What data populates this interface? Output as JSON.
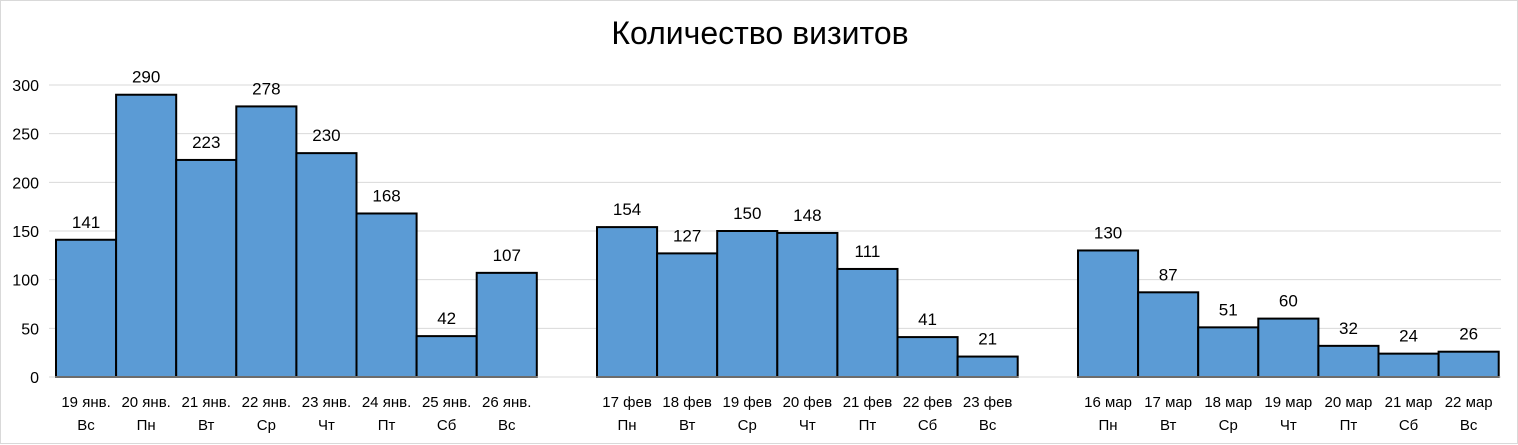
{
  "chart_data": {
    "type": "bar",
    "title": "Количество визитов",
    "xlabel": "",
    "ylabel": "",
    "ylim": [
      0,
      300
    ],
    "yticks": [
      0,
      50,
      100,
      150,
      200,
      250,
      300
    ],
    "grid": true,
    "legend": "none",
    "colors": {
      "bar_fill": "#5b9bd5",
      "bar_stroke": "#000000",
      "grid": "#d9d9d9",
      "text": "#000000"
    },
    "groups": [
      {
        "categories": [
          {
            "date": "19 янв.",
            "day": "Вс"
          },
          {
            "date": "20 янв.",
            "day": "Пн"
          },
          {
            "date": "21 янв.",
            "day": "Вт"
          },
          {
            "date": "22 янв.",
            "day": "Ср"
          },
          {
            "date": "23 янв.",
            "day": "Чт"
          },
          {
            "date": "24 янв.",
            "day": "Пт"
          },
          {
            "date": "25 янв.",
            "day": "Сб"
          },
          {
            "date": "26 янв.",
            "day": "Вс"
          }
        ],
        "values": [
          141,
          290,
          223,
          278,
          230,
          168,
          42,
          107
        ]
      },
      {
        "categories": [
          {
            "date": "17 фев",
            "day": "Пн"
          },
          {
            "date": "18 фев",
            "day": "Вт"
          },
          {
            "date": "19 фев",
            "day": "Ср"
          },
          {
            "date": "20 фев",
            "day": "Чт"
          },
          {
            "date": "21 фев",
            "day": "Пт"
          },
          {
            "date": "22 фев",
            "day": "Сб"
          },
          {
            "date": "23 фев",
            "day": "Вс"
          }
        ],
        "values": [
          154,
          127,
          150,
          148,
          111,
          41,
          21
        ]
      },
      {
        "categories": [
          {
            "date": "16 мар",
            "day": "Пн"
          },
          {
            "date": "17 мар",
            "day": "Вт"
          },
          {
            "date": "18 мар",
            "day": "Ср"
          },
          {
            "date": "19 мар",
            "day": "Чт"
          },
          {
            "date": "20 мар",
            "day": "Пт"
          },
          {
            "date": "21 мар",
            "day": "Сб"
          },
          {
            "date": "22 мар",
            "day": "Вс"
          }
        ],
        "values": [
          130,
          87,
          51,
          60,
          32,
          24,
          26
        ]
      }
    ]
  }
}
